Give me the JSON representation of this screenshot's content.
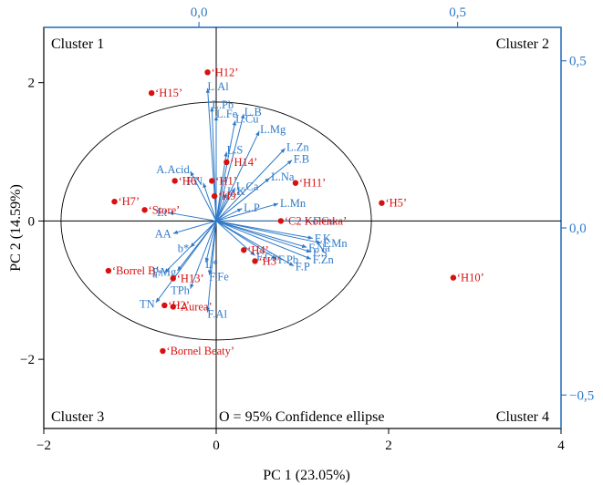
{
  "chart_data": {
    "type": "scatter",
    "subtype": "pca-biplot",
    "xlabel": "PC 1 (23.05%)",
    "ylabel": "PC 2 (14.59%)",
    "xlim": [
      -2,
      4
    ],
    "ylim": [
      -3,
      2.8
    ],
    "x_ticks": [
      "−2",
      "0",
      "2",
      "4"
    ],
    "y_ticks": [
      "−2",
      "0",
      "2"
    ],
    "top_axis": {
      "lim": [
        -0.3,
        0.7
      ],
      "ticks": [
        "0,0",
        "0,5"
      ]
    },
    "right_axis": {
      "lim": [
        -0.6,
        0.6
      ],
      "ticks": [
        "0,5",
        "0,0",
        "−0,5"
      ]
    },
    "cluster_labels": [
      "Cluster 1",
      "Cluster 2",
      "Cluster 3",
      "Cluster 4"
    ],
    "ellipse_note": "O = 95% Confidence ellipse",
    "confidence_ellipse": {
      "center": [
        0,
        0
      ],
      "radius_x": 1.8,
      "radius_y": 1.72
    },
    "scores": [
      {
        "label": "‘H12’",
        "x": -0.1,
        "y": 2.15
      },
      {
        "label": "‘H15’",
        "x": -0.75,
        "y": 1.85
      },
      {
        "label": "‘H14’",
        "x": 0.12,
        "y": 0.85
      },
      {
        "label": "‘H11’",
        "x": 0.92,
        "y": 0.55
      },
      {
        "label": "‘H5’",
        "x": 1.92,
        "y": 0.26
      },
      {
        "label": "‘H6’",
        "x": -0.48,
        "y": 0.58
      },
      {
        "label": "‘H1’",
        "x": -0.05,
        "y": 0.58
      },
      {
        "label": "‘H9’",
        "x": -0.02,
        "y": 0.36
      },
      {
        "label": "‘H7’",
        "x": -1.18,
        "y": 0.28
      },
      {
        "label": "‘Store’",
        "x": -0.83,
        "y": 0.16
      },
      {
        "label": "‘C2 Kolenka’",
        "x": 0.75,
        "y": 0.0
      },
      {
        "label": "‘H4’",
        "x": 0.32,
        "y": -0.42
      },
      {
        "label": "‘H3’",
        "x": 0.45,
        "y": -0.58
      },
      {
        "label": "‘H10’",
        "x": 2.75,
        "y": -0.82
      },
      {
        "label": "‘Borrel B’",
        "x": -1.25,
        "y": -0.72
      },
      {
        "label": "‘H13’",
        "x": -0.5,
        "y": -0.83
      },
      {
        "label": "‘H2’",
        "x": -0.6,
        "y": -1.22
      },
      {
        "label": "‘Aurea’",
        "x": -0.5,
        "y": -1.24
      },
      {
        "label": "‘Bornel Beaty’",
        "x": -0.62,
        "y": -1.88
      }
    ],
    "loadings": [
      {
        "label": "L.Al",
        "x": -0.1,
        "y": 1.92
      },
      {
        "label": "L.Pb",
        "x": -0.05,
        "y": 1.65
      },
      {
        "label": "L.Fe",
        "x": 0.0,
        "y": 1.52
      },
      {
        "label": "L.Cu",
        "x": 0.22,
        "y": 1.45
      },
      {
        "label": "L.B",
        "x": 0.32,
        "y": 1.55
      },
      {
        "label": "L.Mg",
        "x": 0.5,
        "y": 1.3
      },
      {
        "label": "L.Zn",
        "x": 0.8,
        "y": 1.05
      },
      {
        "label": "F.B",
        "x": 0.88,
        "y": 0.88
      },
      {
        "label": "L.S",
        "x": 0.12,
        "y": 1.0
      },
      {
        "label": "L.Na",
        "x": 0.62,
        "y": 0.62
      },
      {
        "label": "L.Ca",
        "x": 0.22,
        "y": 0.48
      },
      {
        "label": "L.K",
        "x": 0.12,
        "y": 0.4
      },
      {
        "label": "L.P",
        "x": 0.3,
        "y": 0.18
      },
      {
        "label": "L.Mn",
        "x": 0.72,
        "y": 0.25
      },
      {
        "label": "A.Acid",
        "x": -0.3,
        "y": 0.72
      },
      {
        "label": "F.N",
        "x": -0.15,
        "y": 0.55
      },
      {
        "label": "Et",
        "x": -0.55,
        "y": 0.12
      },
      {
        "label": "AA",
        "x": -0.5,
        "y": -0.18
      },
      {
        "label": "F.Cu",
        "x": 1.1,
        "y": 0.0
      },
      {
        "label": "F.K",
        "x": 1.12,
        "y": -0.25
      },
      {
        "label": "F.Mn",
        "x": 1.22,
        "y": -0.32
      },
      {
        "label": "F.Na",
        "x": 1.05,
        "y": -0.38
      },
      {
        "label": "F.S",
        "x": 1.1,
        "y": -0.45
      },
      {
        "label": "F.Zn",
        "x": 1.1,
        "y": -0.55
      },
      {
        "label": "F.P",
        "x": 0.9,
        "y": -0.65
      },
      {
        "label": "F.Pb",
        "x": 0.7,
        "y": -0.55
      },
      {
        "label": "F.Ca",
        "x": 0.45,
        "y": -0.5
      },
      {
        "label": "b*",
        "x": -0.3,
        "y": -0.38
      },
      {
        "label": "L*",
        "x": -0.12,
        "y": -0.6
      },
      {
        "label": "F.Fe",
        "x": -0.08,
        "y": -0.78
      },
      {
        "label": "TPh",
        "x": -0.3,
        "y": -0.98
      },
      {
        "label": "F.Al",
        "x": -0.1,
        "y": -1.32
      },
      {
        "label": "a*",
        "x": -0.6,
        "y": -0.75
      },
      {
        "label": "P.Mg",
        "x": -0.45,
        "y": -0.72
      },
      {
        "label": "TN",
        "x": -0.7,
        "y": -1.18
      }
    ]
  },
  "colors": {
    "score": "#d81010",
    "loading": "#2f7ac8",
    "axis": "#000000",
    "secondary_axis": "#2f7ac8"
  }
}
